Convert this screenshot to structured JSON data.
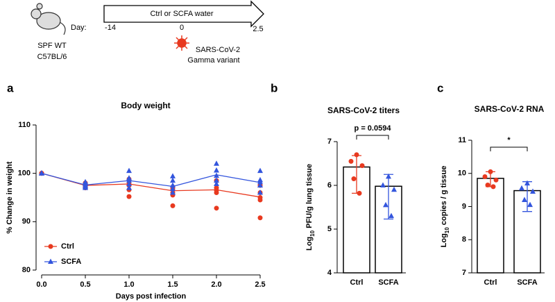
{
  "schematic": {
    "strain": [
      "SPF WT",
      "C57BL/6"
    ],
    "timeline": {
      "label": "Ctrl or SCFA water",
      "day_label": "Day:",
      "days": [
        "-14",
        "0",
        "2.5"
      ]
    },
    "infection": [
      "SARS-CoV-2",
      "Gamma variant"
    ]
  },
  "chart_data": [
    {
      "type": "line",
      "panel": "a",
      "title": "Body weight",
      "xlabel": "Days post infection",
      "ylabel": "% Change in weight",
      "x": [
        0,
        0.5,
        1,
        1.5,
        2,
        2.5
      ],
      "xlim": [
        0,
        2.5
      ],
      "xticks": [
        {
          "value": 0,
          "label": "0.0"
        },
        0.5,
        {
          "value": 1,
          "label": "1.0"
        },
        1.5,
        {
          "value": 2,
          "label": "2.0"
        },
        2.5
      ],
      "ylim": [
        80,
        110
      ],
      "yticks": [
        80,
        90,
        100,
        110
      ],
      "legend": "lower left",
      "series": [
        {
          "name": "Ctrl",
          "color": "#e8391f",
          "marker": "circle",
          "values": [
            100,
            97.5,
            97.8,
            96.4,
            96.6,
            95.1
          ],
          "points": [
            [
              100,
              100,
              100,
              100,
              100
            ],
            [
              98,
              97.8,
              97.5,
              97.2,
              97
            ],
            [
              98.8,
              97.8,
              97.5,
              96.6,
              95.2
            ],
            [
              97.2,
              96.8,
              96,
              95.5,
              93.3
            ],
            [
              98.5,
              97,
              96.5,
              96,
              92.8
            ],
            [
              97.5,
              96,
              95,
              94.5,
              90.8
            ]
          ]
        },
        {
          "name": "SCFA",
          "color": "#3355dd",
          "marker": "triangle",
          "values": [
            100,
            97.6,
            98.5,
            97.3,
            99.7,
            98.1
          ],
          "points": [
            [
              100,
              100,
              100,
              100,
              100
            ],
            [
              98.2,
              97.8,
              97.5,
              97.2,
              97
            ],
            [
              100.5,
              99,
              98.5,
              97.8,
              97
            ],
            [
              99.4,
              98.5,
              97.5,
              96.8,
              96
            ],
            [
              102,
              100.6,
              99.5,
              98.5,
              97.8
            ],
            [
              100.5,
              98.6,
              98.2,
              97.5,
              96
            ]
          ]
        }
      ]
    },
    {
      "type": "bar",
      "panel": "b",
      "title": "SARS-CoV-2  titers",
      "ylabel_parts": [
        "Log",
        "10",
        " PFU/g lung tissue"
      ],
      "categories": [
        "Ctrl",
        "SCFA"
      ],
      "values": [
        6.42,
        5.98
      ],
      "error_low": [
        5.82,
        5.23
      ],
      "error_high": [
        6.68,
        6.25
      ],
      "points": [
        [
          6.7,
          6.55,
          6.45,
          6.15,
          5.82
        ],
        [
          6.2,
          6.0,
          5.9,
          5.55,
          5.3
        ]
      ],
      "point_colors": [
        "#e8391f",
        "#3355dd"
      ],
      "markers": [
        "circle",
        "triangle"
      ],
      "ylim": [
        4,
        7
      ],
      "yticks": [
        4,
        5,
        6,
        7
      ],
      "annotation": "p = 0.0594"
    },
    {
      "type": "bar",
      "panel": "c",
      "title": "SARS-CoV-2 RNA",
      "ylabel_parts": [
        "Log",
        "10",
        " copies / g tissue"
      ],
      "categories": [
        "Ctrl",
        "SCFA"
      ],
      "values": [
        9.85,
        9.48
      ],
      "error_low": [
        9.6,
        8.85
      ],
      "error_high": [
        10.05,
        9.75
      ],
      "points": [
        [
          10.05,
          9.9,
          9.8,
          9.65,
          9.6
        ],
        [
          9.7,
          9.55,
          9.45,
          9.2,
          9.05
        ]
      ],
      "point_colors": [
        "#e8391f",
        "#3355dd"
      ],
      "markers": [
        "circle",
        "triangle"
      ],
      "ylim": [
        7,
        11
      ],
      "yticks": [
        7,
        8,
        9,
        10,
        11
      ],
      "annotation": "*"
    }
  ]
}
